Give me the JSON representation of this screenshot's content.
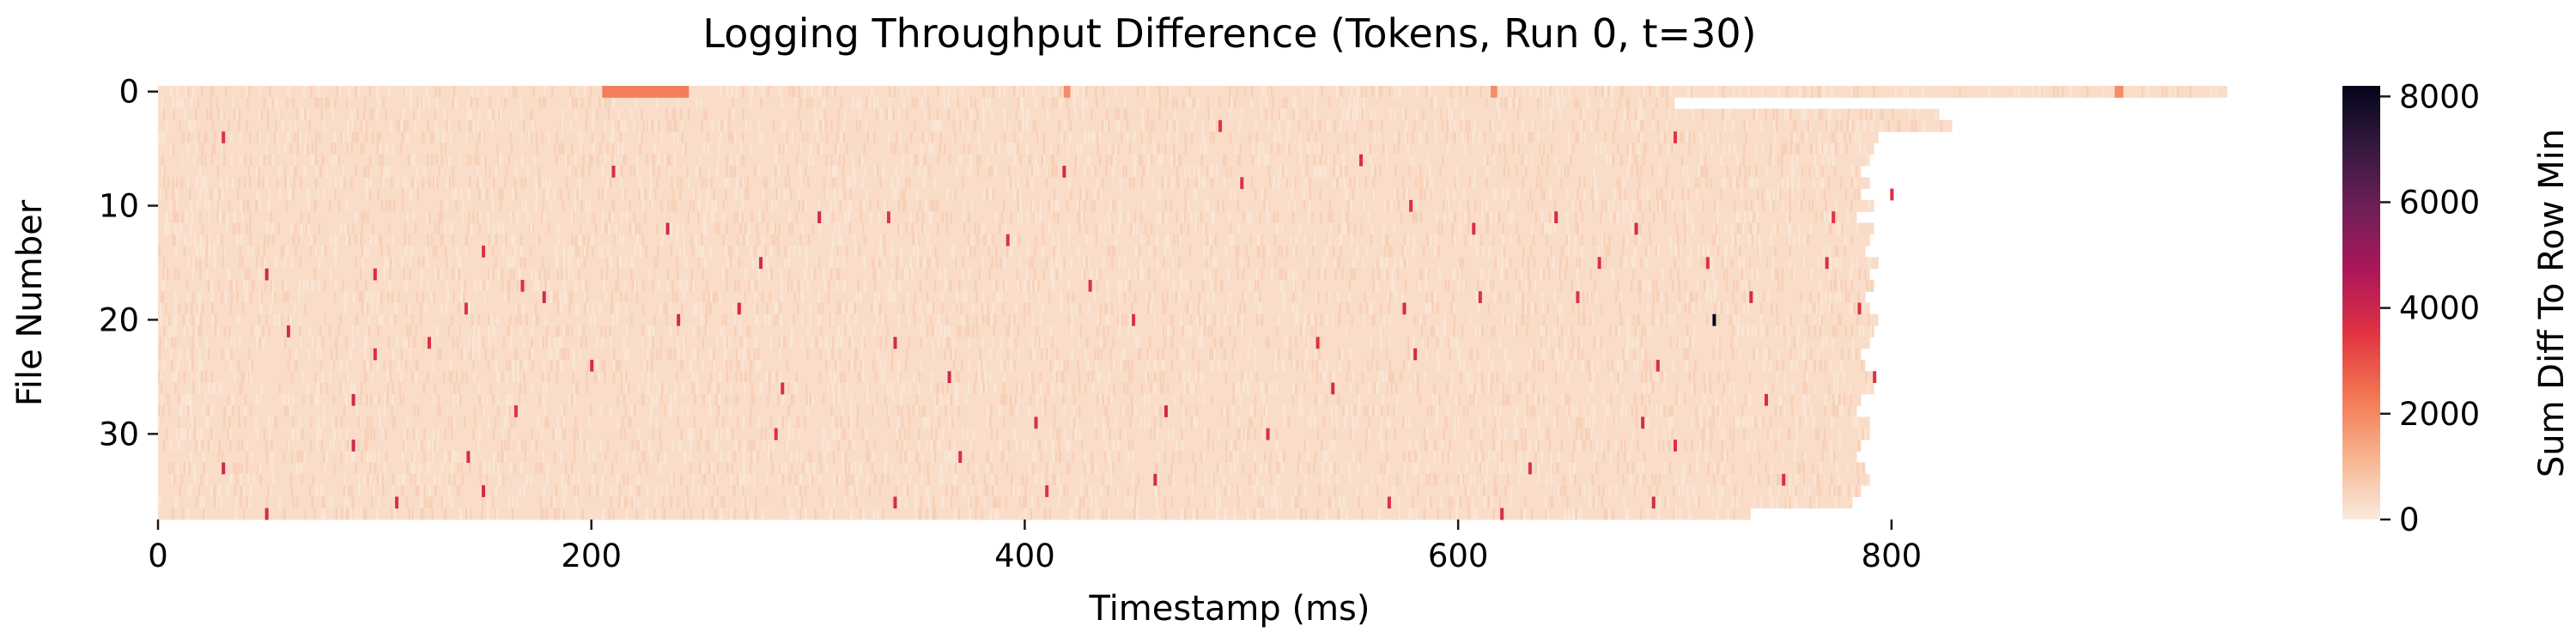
{
  "chart_data": {
    "type": "heatmap",
    "title": "Logging Throughput Difference (Tokens, Run 0, t=30)",
    "xlabel": "Timestamp (ms)",
    "ylabel": "File Number",
    "x_ticks": [
      0,
      200,
      400,
      600,
      800
    ],
    "y_ticks": [
      0,
      10,
      20,
      30
    ],
    "xlim": [
      0,
      955
    ],
    "rows": 38,
    "colorbar": {
      "label": "Sum Diff To Row Min",
      "ticks": [
        0,
        2000,
        4000,
        6000,
        8000
      ],
      "range": [
        0,
        8200
      ],
      "colormap": [
        "#faebdd",
        "#f6b48f",
        "#f37651",
        "#e13342",
        "#ad1759",
        "#701f57",
        "#35193e",
        "#03051a"
      ]
    },
    "typical_value": 300,
    "row_end_ms": [
      955,
      700,
      822,
      828,
      794,
      792,
      790,
      786,
      790,
      786,
      792,
      784,
      792,
      790,
      788,
      794,
      790,
      792,
      788,
      790,
      794,
      792,
      790,
      786,
      788,
      792,
      792,
      786,
      784,
      790,
      790,
      786,
      784,
      788,
      790,
      786,
      782,
      735
    ],
    "row0_hot_segments": [
      {
        "start": 205,
        "end": 245,
        "value": 2200
      },
      {
        "start": 418,
        "end": 421,
        "value": 1900
      },
      {
        "start": 615,
        "end": 618,
        "value": 1900
      },
      {
        "start": 903,
        "end": 907,
        "value": 1900
      }
    ],
    "spikes": [
      {
        "row": 4,
        "x": 30,
        "value": 3600
      },
      {
        "row": 4,
        "x": 700,
        "value": 3500
      },
      {
        "row": 6,
        "x": 555,
        "value": 3800
      },
      {
        "row": 7,
        "x": 210,
        "value": 3700
      },
      {
        "row": 7,
        "x": 418,
        "value": 3900
      },
      {
        "row": 8,
        "x": 500,
        "value": 3600
      },
      {
        "row": 9,
        "x": 800,
        "value": 3700
      },
      {
        "row": 11,
        "x": 305,
        "value": 3900
      },
      {
        "row": 11,
        "x": 337,
        "value": 3500
      },
      {
        "row": 11,
        "x": 645,
        "value": 3800
      },
      {
        "row": 11,
        "x": 773,
        "value": 3600
      },
      {
        "row": 12,
        "x": 235,
        "value": 3900
      },
      {
        "row": 12,
        "x": 607,
        "value": 3700
      },
      {
        "row": 12,
        "x": 682,
        "value": 3800
      },
      {
        "row": 14,
        "x": 150,
        "value": 3600
      },
      {
        "row": 15,
        "x": 278,
        "value": 3900
      },
      {
        "row": 15,
        "x": 665,
        "value": 3700
      },
      {
        "row": 15,
        "x": 715,
        "value": 3600
      },
      {
        "row": 15,
        "x": 770,
        "value": 3700
      },
      {
        "row": 16,
        "x": 50,
        "value": 3900
      },
      {
        "row": 16,
        "x": 100,
        "value": 3800
      },
      {
        "row": 17,
        "x": 168,
        "value": 3700
      },
      {
        "row": 17,
        "x": 430,
        "value": 3600
      },
      {
        "row": 18,
        "x": 178,
        "value": 3900
      },
      {
        "row": 18,
        "x": 610,
        "value": 3700
      },
      {
        "row": 18,
        "x": 655,
        "value": 3600
      },
      {
        "row": 18,
        "x": 735,
        "value": 3800
      },
      {
        "row": 19,
        "x": 142,
        "value": 3700
      },
      {
        "row": 19,
        "x": 268,
        "value": 3900
      },
      {
        "row": 19,
        "x": 575,
        "value": 3800
      },
      {
        "row": 19,
        "x": 785,
        "value": 3600
      },
      {
        "row": 20,
        "x": 718,
        "value": 8200
      },
      {
        "row": 20,
        "x": 240,
        "value": 3900
      },
      {
        "row": 20,
        "x": 450,
        "value": 3700
      },
      {
        "row": 21,
        "x": 60,
        "value": 3800
      },
      {
        "row": 22,
        "x": 340,
        "value": 3900
      },
      {
        "row": 22,
        "x": 535,
        "value": 3600
      },
      {
        "row": 23,
        "x": 100,
        "value": 3700
      },
      {
        "row": 23,
        "x": 580,
        "value": 3900
      },
      {
        "row": 24,
        "x": 200,
        "value": 3800
      },
      {
        "row": 24,
        "x": 692,
        "value": 3700
      },
      {
        "row": 25,
        "x": 365,
        "value": 3900
      },
      {
        "row": 25,
        "x": 792,
        "value": 3600
      },
      {
        "row": 26,
        "x": 288,
        "value": 3700
      },
      {
        "row": 27,
        "x": 90,
        "value": 3900
      },
      {
        "row": 27,
        "x": 742,
        "value": 3800
      },
      {
        "row": 28,
        "x": 165,
        "value": 3600
      },
      {
        "row": 28,
        "x": 465,
        "value": 3900
      },
      {
        "row": 29,
        "x": 405,
        "value": 3700
      },
      {
        "row": 29,
        "x": 685,
        "value": 3800
      },
      {
        "row": 30,
        "x": 285,
        "value": 3600
      },
      {
        "row": 30,
        "x": 512,
        "value": 3700
      },
      {
        "row": 31,
        "x": 90,
        "value": 3900
      },
      {
        "row": 31,
        "x": 700,
        "value": 3600
      },
      {
        "row": 32,
        "x": 143,
        "value": 3800
      },
      {
        "row": 32,
        "x": 370,
        "value": 3700
      },
      {
        "row": 33,
        "x": 30,
        "value": 3900
      },
      {
        "row": 33,
        "x": 633,
        "value": 3600
      },
      {
        "row": 34,
        "x": 460,
        "value": 3800
      },
      {
        "row": 34,
        "x": 750,
        "value": 3700
      },
      {
        "row": 35,
        "x": 150,
        "value": 3900
      },
      {
        "row": 35,
        "x": 410,
        "value": 3600
      },
      {
        "row": 36,
        "x": 110,
        "value": 3700
      },
      {
        "row": 36,
        "x": 340,
        "value": 3800
      },
      {
        "row": 36,
        "x": 568,
        "value": 3600
      },
      {
        "row": 36,
        "x": 690,
        "value": 3900
      },
      {
        "row": 37,
        "x": 50,
        "value": 3800
      },
      {
        "row": 37,
        "x": 620,
        "value": 3700
      },
      {
        "row": 3,
        "x": 490,
        "value": 3500
      },
      {
        "row": 13,
        "x": 392,
        "value": 3600
      },
      {
        "row": 22,
        "x": 125,
        "value": 3700
      },
      {
        "row": 26,
        "x": 542,
        "value": 3800
      },
      {
        "row": 10,
        "x": 578,
        "value": 3600
      }
    ]
  }
}
